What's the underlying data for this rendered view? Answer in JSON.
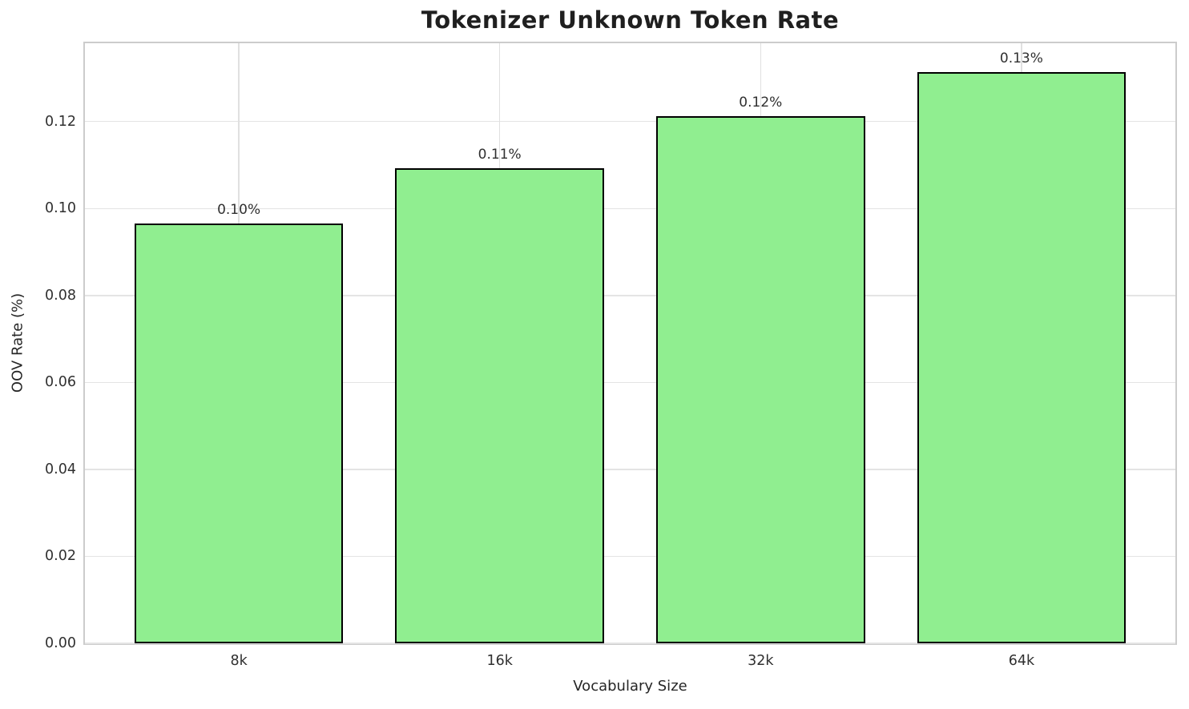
{
  "chart_data": {
    "type": "bar",
    "title": "Tokenizer Unknown Token Rate",
    "xlabel": "Vocabulary Size",
    "ylabel": "OOV Rate (%)",
    "categories": [
      "8k",
      "16k",
      "32k",
      "64k"
    ],
    "values": [
      0.0966,
      0.1092,
      0.1213,
      0.1313
    ],
    "bar_labels": [
      "0.10%",
      "0.11%",
      "0.12%",
      "0.13%"
    ],
    "yticks": [
      0.0,
      0.02,
      0.04,
      0.06,
      0.08,
      0.1,
      0.12
    ],
    "ytick_labels": [
      "0.00",
      "0.02",
      "0.04",
      "0.06",
      "0.08",
      "0.10",
      "0.12"
    ],
    "ylim": [
      0,
      0.138
    ],
    "xlim_units": [
      -0.59,
      3.59
    ],
    "bar_width_units": 0.8,
    "grid": true,
    "legend": null,
    "colors": {
      "bar_fill": "#90EE90",
      "bar_edge": "#000000",
      "grid_h": "#e4e4e4",
      "grid_v": "#e0e0e0",
      "spine": "#cccccc",
      "text": "#262626",
      "background": "#ffffff"
    }
  }
}
